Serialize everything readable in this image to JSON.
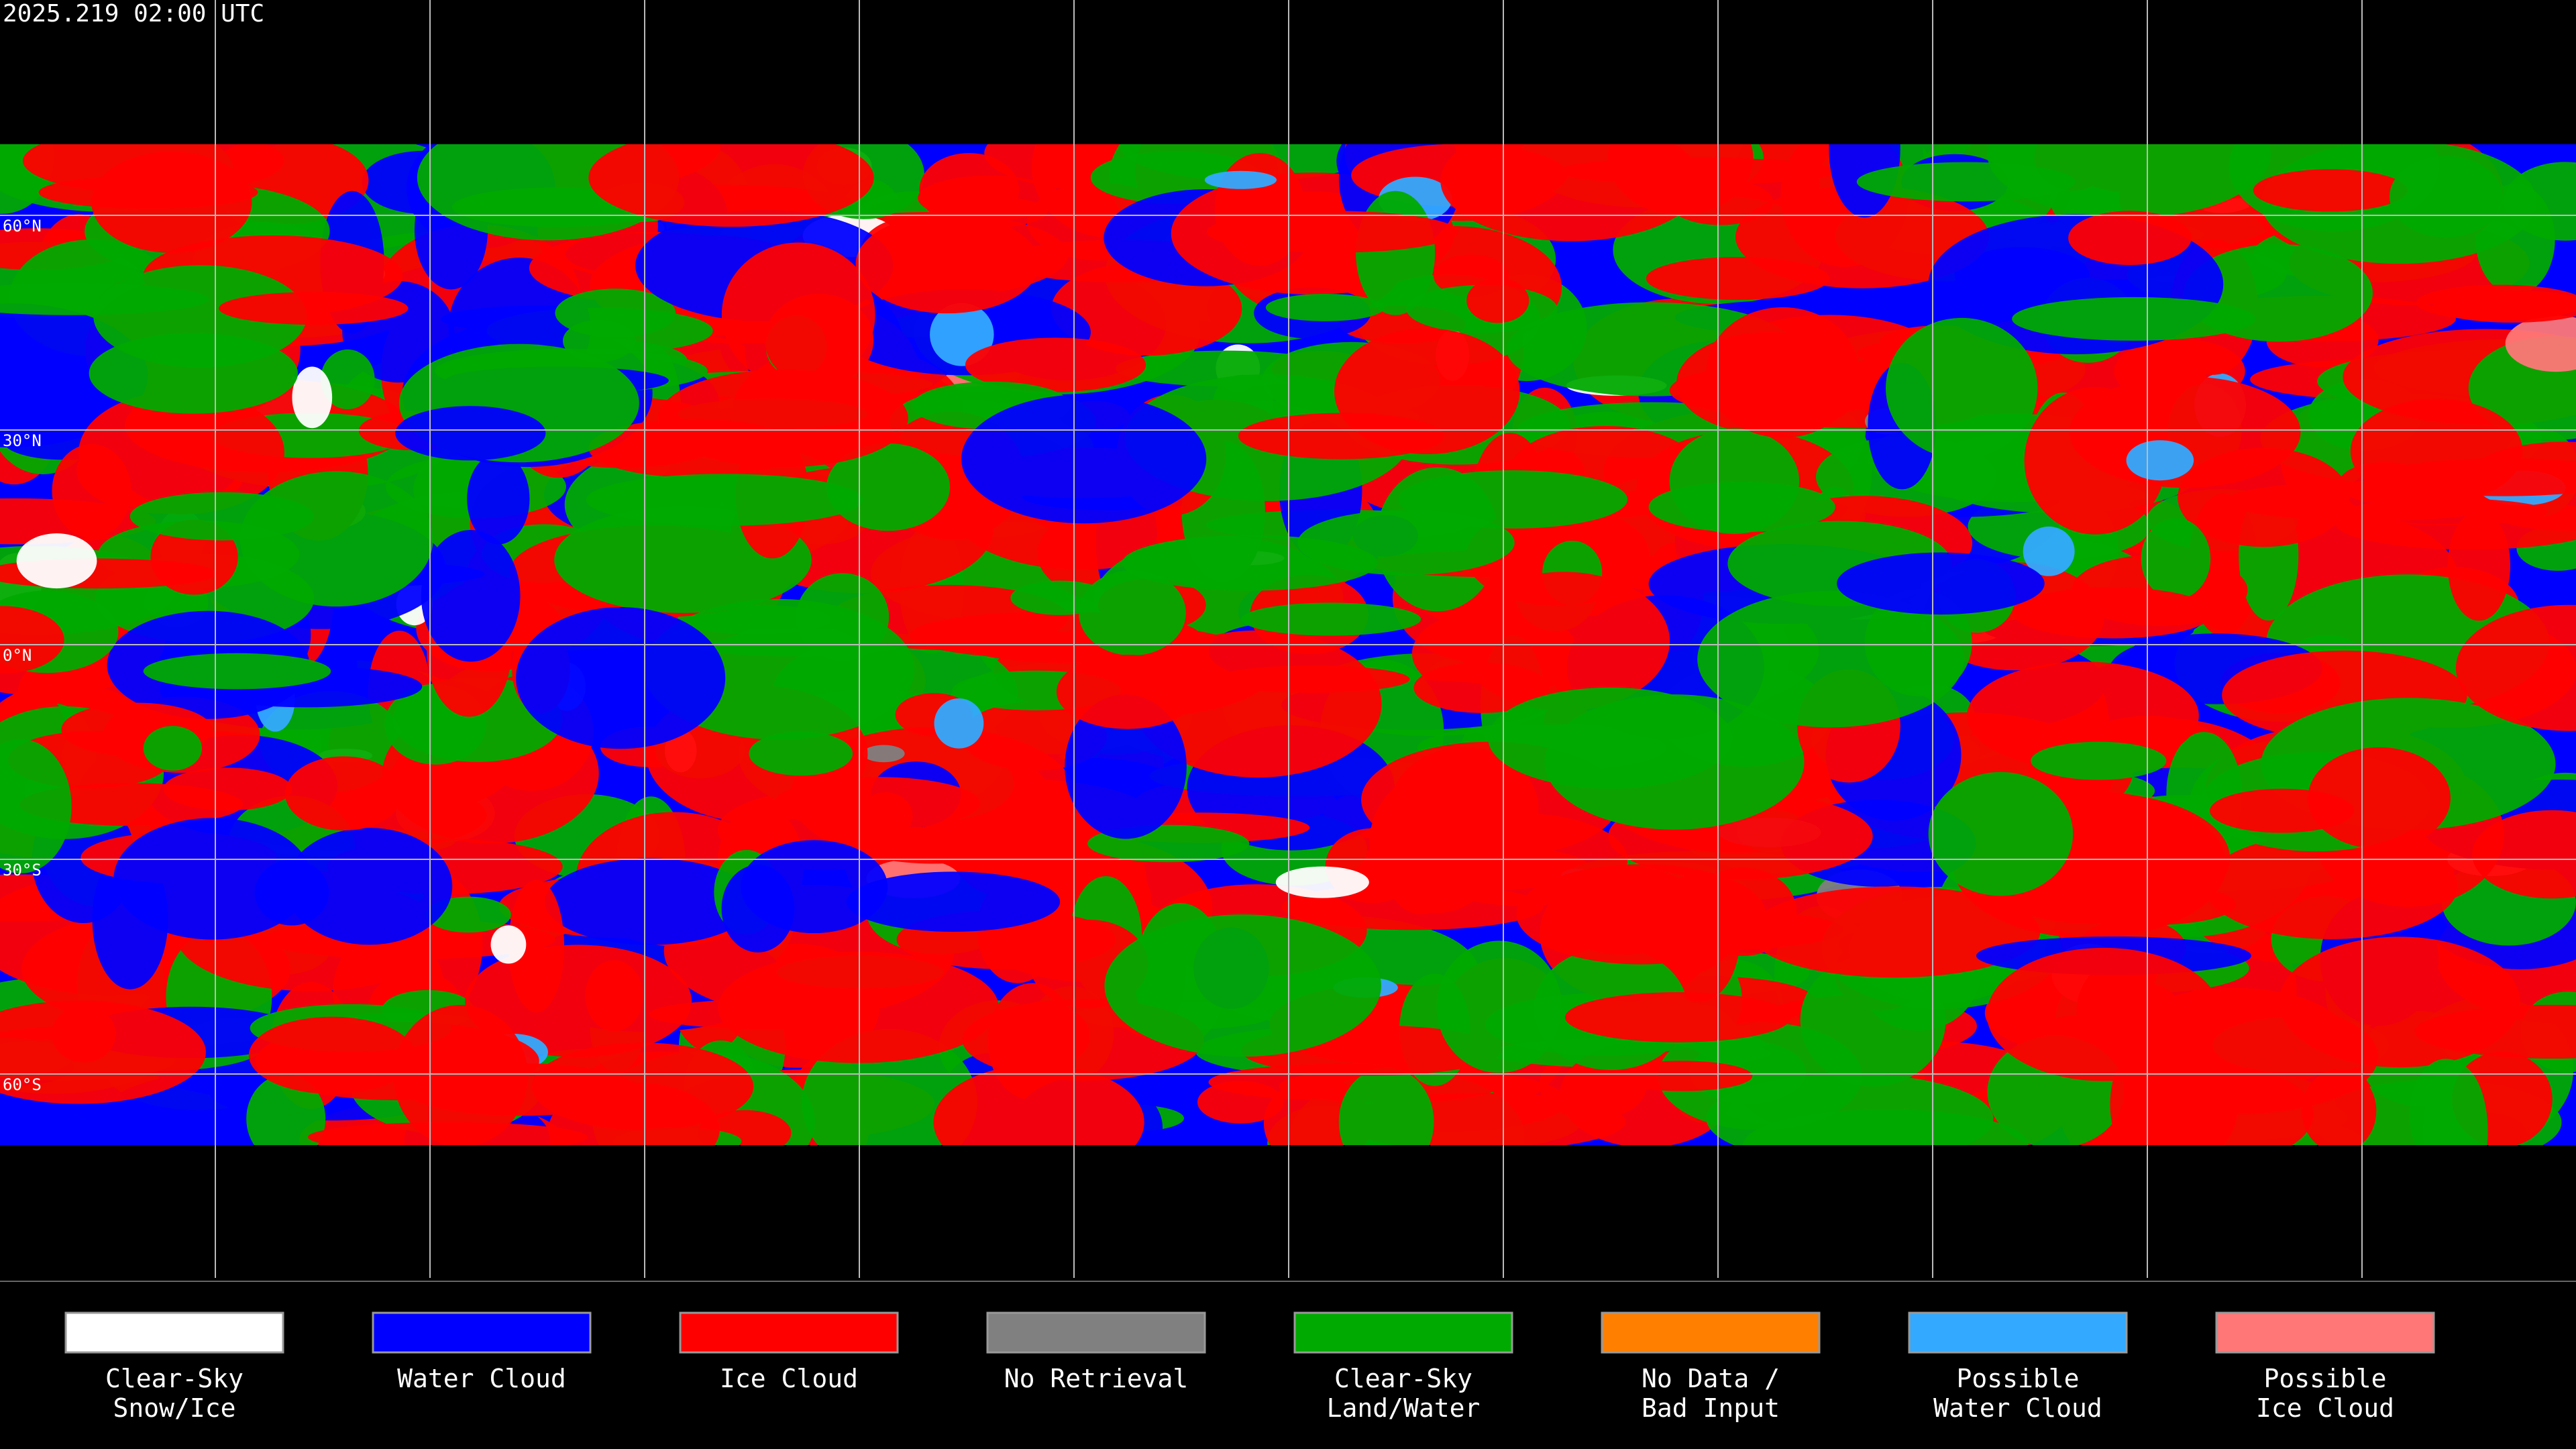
{
  "header": {
    "timestamp": "2025.219 02:00 UTC"
  },
  "latitude_labels": [
    "60°N",
    "30°N",
    "0°N",
    "30°S",
    "60°S"
  ],
  "legend": {
    "items": [
      {
        "lines": [
          "Clear-Sky",
          "Snow/Ice"
        ],
        "color": "#ffffff"
      },
      {
        "lines": [
          "Water Cloud"
        ],
        "color": "#0000ff"
      },
      {
        "lines": [
          "Ice Cloud"
        ],
        "color": "#ff0000"
      },
      {
        "lines": [
          "No Retrieval"
        ],
        "color": "#808080"
      },
      {
        "lines": [
          "Clear-Sky",
          "Land/Water"
        ],
        "color": "#00aa00"
      },
      {
        "lines": [
          "No Data /",
          "Bad Input"
        ],
        "color": "#ff8000"
      },
      {
        "lines": [
          "Possible",
          "Water Cloud"
        ],
        "color": "#33aaff"
      },
      {
        "lines": [
          "Possible",
          "Ice Cloud"
        ],
        "color": "#ff7777"
      }
    ]
  }
}
